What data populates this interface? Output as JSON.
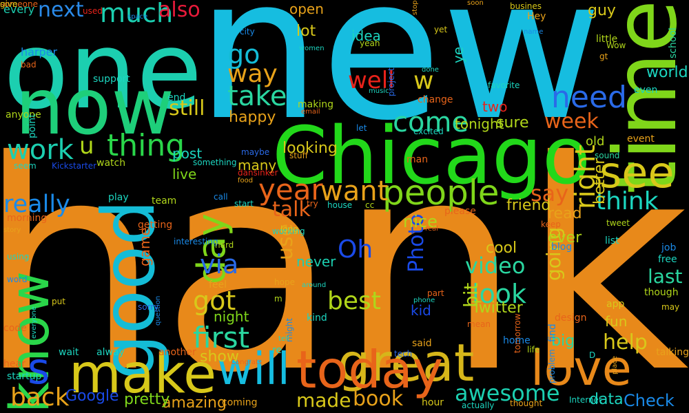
{
  "words": [
    {
      "t": "Thank",
      "c": "#e8891a",
      "r": 0
    },
    {
      "t": "new",
      "c": "#16bde0",
      "r": 0
    },
    {
      "t": "Chicago",
      "c": "#22d81a",
      "r": 0
    },
    {
      "t": "one",
      "c": "#1ccfb0",
      "r": 0
    },
    {
      "t": "now",
      "c": "#1ecf7a",
      "r": 0
    },
    {
      "t": "time",
      "c": "#7fd61a",
      "r": 1
    },
    {
      "t": "good",
      "c": "#14bcd6",
      "r": 1
    },
    {
      "t": "make",
      "c": "#d8c81a",
      "r": 0
    },
    {
      "t": "great",
      "c": "#d6b61a",
      "r": 0
    },
    {
      "t": "today",
      "c": "#e8641a",
      "r": 0
    },
    {
      "t": "love",
      "c": "#e8891a",
      "r": 0
    },
    {
      "t": "know",
      "c": "#2ad64a",
      "r": 1
    },
    {
      "t": "see",
      "c": "#d8c81a",
      "r": 0
    },
    {
      "t": "day",
      "c": "#7fd61a",
      "r": 1
    },
    {
      "t": "will",
      "c": "#16bde0",
      "r": 0
    },
    {
      "t": "people",
      "c": "#7fd61a",
      "r": 0
    },
    {
      "t": "thing",
      "c": "#2ad64a",
      "r": 0
    },
    {
      "t": "year",
      "c": "#e8641a",
      "r": 0
    },
    {
      "t": "want",
      "c": "#e8a21a",
      "r": 0
    },
    {
      "t": "much",
      "c": "#1ccfb0",
      "r": 0
    },
    {
      "t": "next",
      "c": "#2a8ae8",
      "r": 0
    },
    {
      "t": "also",
      "c": "#e81a3a",
      "r": 0
    },
    {
      "t": "go",
      "c": "#14bcd6",
      "r": 0
    },
    {
      "t": "way",
      "c": "#e8a21a",
      "r": 0
    },
    {
      "t": "take",
      "c": "#2ad6a0",
      "r": 0
    },
    {
      "t": "need",
      "c": "#2a6ae8",
      "r": 0
    },
    {
      "t": "right",
      "c": "#d8c81a",
      "r": 1
    },
    {
      "t": "week",
      "c": "#e8641a",
      "r": 0
    },
    {
      "t": "come",
      "c": "#2ad6a0",
      "r": 0
    },
    {
      "t": "well",
      "c": "#e8221a",
      "r": 0
    },
    {
      "t": "work",
      "c": "#1ccfb0",
      "r": 0
    },
    {
      "t": "s",
      "c": "#1a4ae8",
      "r": 0
    },
    {
      "t": "u",
      "c": "#b0d61a",
      "r": 0
    },
    {
      "t": "w",
      "c": "#d8c81a",
      "r": 0
    },
    {
      "t": "think",
      "c": "#1cd6c0",
      "r": 0
    },
    {
      "t": "say",
      "c": "#e8641a",
      "r": 0
    },
    {
      "t": "first",
      "c": "#2ad6a0",
      "r": 0
    },
    {
      "t": "really",
      "c": "#1a8ae8",
      "r": 0
    },
    {
      "t": "via",
      "c": "#2a6ae8",
      "r": 0
    },
    {
      "t": "got",
      "c": "#d8c81a",
      "r": 0
    },
    {
      "t": "back",
      "c": "#e8a21a",
      "r": 0
    },
    {
      "t": "still",
      "c": "#d8c81a",
      "r": 0
    },
    {
      "t": "talk",
      "c": "#e8641a",
      "r": 0
    },
    {
      "t": "better",
      "c": "#d8c81a",
      "r": 1
    },
    {
      "t": "look",
      "c": "#2ad6a0",
      "r": 0
    },
    {
      "t": "video",
      "c": "#2ad6a0",
      "r": 0
    },
    {
      "t": "best",
      "c": "#b0d61a",
      "r": 0
    },
    {
      "t": "Oh",
      "c": "#1a4ae8",
      "r": 0
    },
    {
      "t": "Photo",
      "c": "#1a4ae8",
      "r": 1
    },
    {
      "t": "awesome",
      "c": "#1ccfb0",
      "r": 0
    },
    {
      "t": "going",
      "c": "#d8c81a",
      "r": 1
    },
    {
      "t": "bit",
      "c": "#b0d61a",
      "r": 1
    },
    {
      "t": "last",
      "c": "#2ad6a0",
      "r": 0
    },
    {
      "t": "help",
      "c": "#d8c81a",
      "r": 0
    },
    {
      "t": "use",
      "c": "#e8a21a",
      "r": 1
    },
    {
      "t": "book",
      "c": "#e8a21a",
      "r": 0
    },
    {
      "t": "made",
      "c": "#d8c81a",
      "r": 0
    },
    {
      "t": "show",
      "c": "#d8c81a",
      "r": 0
    },
    {
      "t": "Google",
      "c": "#1a4ae8",
      "r": 0
    },
    {
      "t": "Check",
      "c": "#1a8ae8",
      "r": 0
    },
    {
      "t": "data",
      "c": "#1cd6c0",
      "r": 0
    },
    {
      "t": "amazing",
      "c": "#e8a21a",
      "r": 0
    },
    {
      "t": "pretty",
      "c": "#7fd61a",
      "r": 0
    },
    {
      "t": "world",
      "c": "#1cd6c0",
      "r": 0
    },
    {
      "t": "read",
      "c": "#e8a21a",
      "r": 0
    },
    {
      "t": "ever",
      "c": "#b0d61a",
      "r": 0
    },
    {
      "t": "friend",
      "c": "#d8c81a",
      "r": 0
    },
    {
      "t": "nice",
      "c": "#b0d61a",
      "r": 0
    },
    {
      "t": "sure",
      "c": "#b0d61a",
      "r": 0
    },
    {
      "t": "happy",
      "c": "#e8a21a",
      "r": 0
    },
    {
      "t": "looking",
      "c": "#d8c81a",
      "r": 0
    },
    {
      "t": "many",
      "c": "#d8c81a",
      "r": 0
    },
    {
      "t": "post",
      "c": "#1cd6c0",
      "r": 0
    },
    {
      "t": "live",
      "c": "#7fd61a",
      "r": 0
    },
    {
      "t": "game",
      "c": "#e8641a",
      "r": 1
    },
    {
      "t": "night",
      "c": "#7fd61a",
      "r": 0
    },
    {
      "t": "ye",
      "c": "#1cd6c0",
      "r": 1
    },
    {
      "t": "idea",
      "c": "#1cd6c0",
      "r": 0
    },
    {
      "t": "lot",
      "c": "#d8c81a",
      "r": 0
    },
    {
      "t": "open",
      "c": "#e8a21a",
      "r": 0
    },
    {
      "t": "guy",
      "c": "#d8c81a",
      "r": 0
    },
    {
      "t": "tonight",
      "c": "#b0d61a",
      "r": 0
    },
    {
      "t": "cool",
      "c": "#d8c81a",
      "r": 0
    },
    {
      "t": "Twitter",
      "c": "#b0d61a",
      "r": 0
    },
    {
      "t": "kid",
      "c": "#1a4ae8",
      "r": 0
    },
    {
      "t": "big",
      "c": "#2ad6a0",
      "r": 0
    },
    {
      "t": "fun",
      "c": "#d8c81a",
      "r": 0
    },
    {
      "t": "old",
      "c": "#b0d61a",
      "r": 0
    },
    {
      "t": "two",
      "c": "#e8221a",
      "r": 0
    },
    {
      "t": "never",
      "c": "#1ccfb0",
      "r": 0
    },
    {
      "t": "every",
      "c": "#1ccfb0",
      "r": 0
    },
    {
      "t": "used",
      "c": "#e8221a",
      "r": 0
    },
    {
      "t": "space",
      "c": "#1a8ae8",
      "r": 0
    },
    {
      "t": "soon",
      "c": "#e8a21a",
      "r": 0
    },
    {
      "t": "busines",
      "c": "#d8c81a",
      "r": 0
    },
    {
      "t": "Hey",
      "c": "#e8a21a",
      "r": 0
    },
    {
      "t": "little",
      "c": "#b0d61a",
      "r": 0
    },
    {
      "t": "school",
      "c": "#2ad6a0",
      "r": 1
    },
    {
      "t": "name",
      "c": "#1a8ae8",
      "r": 0
    },
    {
      "t": "stop",
      "c": "#e8a21a",
      "r": 1
    },
    {
      "t": "yet",
      "c": "#d8c81a",
      "r": 0
    },
    {
      "t": "harper",
      "c": "#1a8ae8",
      "r": 0
    },
    {
      "t": "bad",
      "c": "#e8641a",
      "r": 0
    },
    {
      "t": "support",
      "c": "#1cd6c0",
      "r": 0
    },
    {
      "t": "city",
      "c": "#1a8ae8",
      "r": 0
    },
    {
      "t": "yeah",
      "c": "#b0d61a",
      "r": 0
    },
    {
      "t": "women",
      "c": "#1cd6c0",
      "r": 0
    },
    {
      "t": "project",
      "c": "#2a6ae8",
      "r": 1
    },
    {
      "t": "done",
      "c": "#1cd6c0",
      "r": 0
    },
    {
      "t": "music",
      "c": "#1cd6c0",
      "r": 0
    },
    {
      "t": "favorite",
      "c": "#1cd6c0",
      "r": 0
    },
    {
      "t": "Wow",
      "c": "#b0d61a",
      "r": 0
    },
    {
      "t": "gt",
      "c": "#e8a21a",
      "r": 0
    },
    {
      "t": "end",
      "c": "#1cd6c0",
      "r": 0
    },
    {
      "t": "making",
      "c": "#b0d61a",
      "r": 0
    },
    {
      "t": "email",
      "c": "#e8641a",
      "r": 0
    },
    {
      "t": "change",
      "c": "#e8641a",
      "r": 0
    },
    {
      "t": "even",
      "c": "#1cd6c0",
      "r": 0
    },
    {
      "t": "anyone",
      "c": "#b0d61a",
      "r": 0
    },
    {
      "t": "point",
      "c": "#1cd6c0",
      "r": 1
    },
    {
      "t": "let",
      "c": "#1a8ae8",
      "r": 0
    },
    {
      "t": "excited",
      "c": "#1cd6c0",
      "r": 0
    },
    {
      "t": "event",
      "c": "#e8a21a",
      "r": 0
    },
    {
      "t": "sound",
      "c": "#2ad6a0",
      "r": 0
    },
    {
      "t": "maybe",
      "c": "#2a6ae8",
      "r": 0
    },
    {
      "t": "stuff",
      "c": "#e8a21a",
      "r": 0
    },
    {
      "t": "man",
      "c": "#e8641a",
      "r": 0
    },
    {
      "t": "watch",
      "c": "#b0d61a",
      "r": 0
    },
    {
      "t": "something",
      "c": "#1cd6c0",
      "r": 0
    },
    {
      "t": "seem",
      "c": "#1cd6c0",
      "r": 0
    },
    {
      "t": "Kickstarter",
      "c": "#1a4ae8",
      "r": 0
    },
    {
      "t": "dansinker",
      "c": "#e8221a",
      "r": 0
    },
    {
      "t": "food",
      "c": "#e8a21a",
      "r": 0
    },
    {
      "t": "play",
      "c": "#1cd6c0",
      "r": 0
    },
    {
      "t": "team",
      "c": "#b0d61a",
      "r": 0
    },
    {
      "t": "call",
      "c": "#1a8ae8",
      "r": 0
    },
    {
      "t": "start",
      "c": "#1cd6c0",
      "r": 0
    },
    {
      "t": "try",
      "c": "#e8641a",
      "r": 0
    },
    {
      "t": "house",
      "c": "#1cd6c0",
      "r": 0
    },
    {
      "t": "cc",
      "c": "#b0d61a",
      "r": 0
    },
    {
      "t": "please",
      "c": "#e8641a",
      "r": 0
    },
    {
      "t": "keep",
      "c": "#e8641a",
      "r": 0
    },
    {
      "t": "tweet",
      "c": "#b0d61a",
      "r": 0
    },
    {
      "t": "morning",
      "c": "#e8641a",
      "r": 0
    },
    {
      "t": "getting",
      "c": "#e8641a",
      "r": 0
    },
    {
      "t": "working",
      "c": "#1cd6c0",
      "r": 0
    },
    {
      "t": "long",
      "c": "#d8c81a",
      "r": 0
    },
    {
      "t": "real",
      "c": "#e8641a",
      "r": 0
    },
    {
      "t": "story",
      "c": "#e8a21a",
      "r": 0
    },
    {
      "t": "interesting",
      "c": "#1a8ae8",
      "r": 0
    },
    {
      "t": "blog",
      "c": "#1a8ae8",
      "r": 0
    },
    {
      "t": "list",
      "c": "#1cd6c0",
      "r": 0
    },
    {
      "t": "using",
      "c": "#1cd6c0",
      "r": 0
    },
    {
      "t": "hard",
      "c": "#b0d61a",
      "r": 0
    },
    {
      "t": "job",
      "c": "#1a8ae8",
      "r": 0
    },
    {
      "t": "free",
      "c": "#1cd6c0",
      "r": 0
    },
    {
      "t": "feel",
      "c": "#e8a21a",
      "r": 0
    },
    {
      "t": "hope",
      "c": "#e8a21a",
      "r": 0
    },
    {
      "t": "around",
      "c": "#1cd6c0",
      "r": 0
    },
    {
      "t": "word",
      "c": "#1a8ae8",
      "r": 0
    },
    {
      "t": "sorry",
      "c": "#2a6ae8",
      "r": 0
    },
    {
      "t": "question",
      "c": "#1a8ae8",
      "r": 1
    },
    {
      "t": "put",
      "c": "#d8c81a",
      "r": 0
    },
    {
      "t": "everyone",
      "c": "#1cd6c0",
      "r": 1
    },
    {
      "t": "m",
      "c": "#b0d61a",
      "r": 0
    },
    {
      "t": "phone",
      "c": "#1cd6c0",
      "r": 0
    },
    {
      "t": "part",
      "c": "#e8641a",
      "r": 0
    },
    {
      "t": "kind",
      "c": "#1cd6c0",
      "r": 0
    },
    {
      "t": "tomorrow",
      "c": "#e8641a",
      "r": 1
    },
    {
      "t": "design",
      "c": "#e8641a",
      "r": 0
    },
    {
      "t": "find",
      "c": "#1a8ae8",
      "r": 1
    },
    {
      "t": "app",
      "c": "#d8c81a",
      "r": 0
    },
    {
      "t": "though",
      "c": "#b0d61a",
      "r": 0
    },
    {
      "t": "may",
      "c": "#d8c81a",
      "r": 0
    },
    {
      "t": "code",
      "c": "#e8641a",
      "r": 0
    },
    {
      "t": "might",
      "c": "#1a8ae8",
      "r": 1
    },
    {
      "t": "tell",
      "c": "#1cd6c0",
      "r": 0
    },
    {
      "t": "re",
      "c": "#1cd6c0",
      "r": 0
    },
    {
      "t": "said",
      "c": "#e8a21a",
      "r": 0
    },
    {
      "t": "home",
      "c": "#1a8ae8",
      "r": 0
    },
    {
      "t": "mean",
      "c": "#e8641a",
      "r": 0
    },
    {
      "t": "life",
      "c": "#b0d61a",
      "r": 0
    },
    {
      "t": "problem",
      "c": "#1a8ae8",
      "r": 1
    },
    {
      "t": "D",
      "c": "#1cd6c0",
      "r": 0
    },
    {
      "t": "place",
      "c": "#e8a21a",
      "r": 1
    },
    {
      "t": "talking",
      "c": "#e8a21a",
      "r": 0
    },
    {
      "t": "hear",
      "c": "#e8641a",
      "r": 0
    },
    {
      "t": "wait",
      "c": "#1cd6c0",
      "r": 0
    },
    {
      "t": "alway",
      "c": "#1cd6c0",
      "r": 0
    },
    {
      "t": "another",
      "c": "#e8641a",
      "r": 0
    },
    {
      "t": "Congrats",
      "c": "#e8641a",
      "r": 0
    },
    {
      "t": "tech",
      "c": "#2a6ae8",
      "r": 0
    },
    {
      "t": "startup",
      "c": "#1cd6c0",
      "r": 0
    },
    {
      "t": "coming",
      "c": "#e8a21a",
      "r": 0
    },
    {
      "t": "hour",
      "c": "#d8c81a",
      "r": 0
    },
    {
      "t": "actually",
      "c": "#1cd6c0",
      "r": 0
    },
    {
      "t": "thought",
      "c": "#e8a21a",
      "r": 0
    },
    {
      "t": "Internet",
      "c": "#1cd6c0",
      "r": 0
    },
    {
      "t": "someone",
      "c": "#e8641a",
      "r": 0
    },
    {
      "t": "give",
      "c": "#d8c81a",
      "r": 0
    }
  ]
}
